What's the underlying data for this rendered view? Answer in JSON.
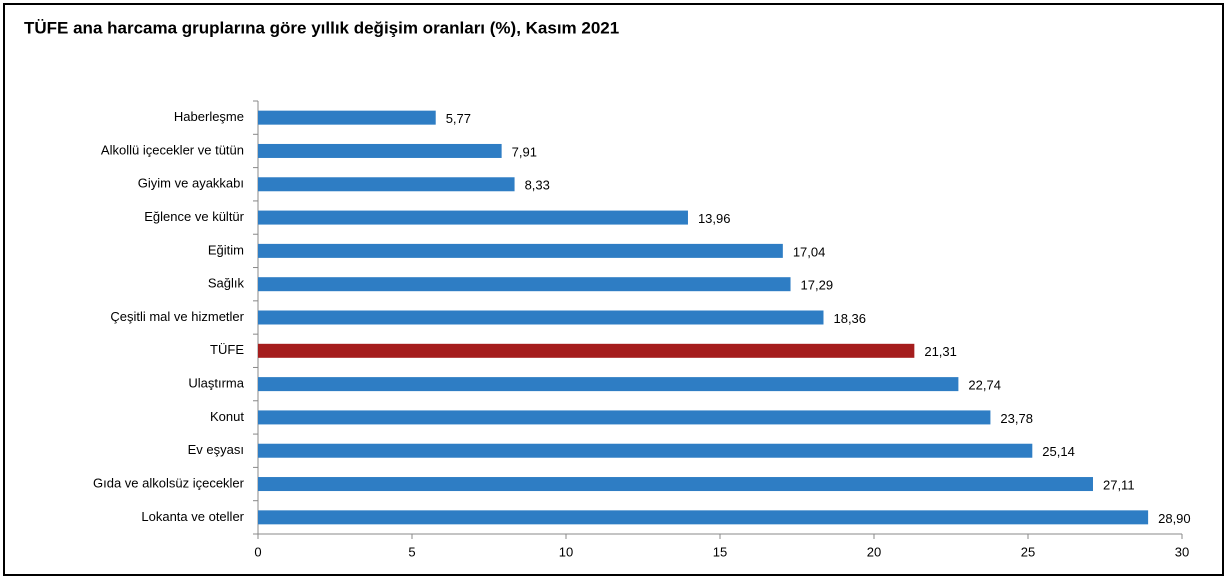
{
  "chart_data": {
    "type": "hbar",
    "title": "TÜFE ana harcama gruplarına göre yıllık değişim oranları (%), Kasım 2021",
    "categories": [
      "Haberleşme",
      "Alkollü içecekler ve tütün",
      "Giyim ve ayakkabı",
      "Eğlence ve kültür",
      "Eğitim",
      "Sağlık",
      "Çeşitli mal ve hizmetler",
      "TÜFE",
      "Ulaştırma",
      "Konut",
      "Ev eşyası",
      "Gıda ve alkolsüz içecekler",
      "Lokanta ve oteller"
    ],
    "values": [
      5.77,
      7.91,
      8.33,
      13.96,
      17.04,
      17.29,
      18.36,
      21.31,
      22.74,
      23.78,
      25.14,
      27.11,
      28.9
    ],
    "value_labels": [
      "5,77",
      "7,91",
      "8,33",
      "13,96",
      "17,04",
      "17,29",
      "18,36",
      "21,31",
      "22,74",
      "23,78",
      "25,14",
      "27,11",
      "28,90"
    ],
    "colors": [
      "#2e7dc4",
      "#2e7dc4",
      "#2e7dc4",
      "#2e7dc4",
      "#2e7dc4",
      "#2e7dc4",
      "#2e7dc4",
      "#a51d1d",
      "#2e7dc4",
      "#2e7dc4",
      "#2e7dc4",
      "#2e7dc4",
      "#2e7dc4"
    ],
    "xlim": [
      0,
      30
    ],
    "xticks": [
      0,
      5,
      10,
      15,
      20,
      25,
      30
    ]
  }
}
